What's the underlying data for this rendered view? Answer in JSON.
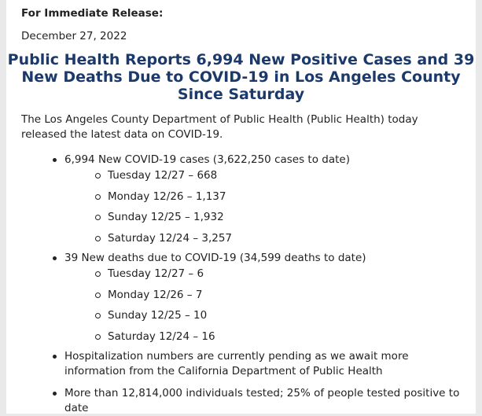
{
  "release_label": "For Immediate Release:",
  "date": "December 27, 2022",
  "headline": "Public Health Reports 6,994 New Positive Cases and 39 New Deaths Due to COVID-19 in Los Angeles County Since Saturday",
  "intro": "The Los Angeles County Department of Public Health (Public Health) today released the latest data on COVID-19.",
  "bullets": [
    {
      "text": "6,994 New COVID-19 cases (3,622,250 cases to date)",
      "sub": [
        "Tuesday 12/27 – 668",
        "Monday 12/26 – 1,137",
        "Sunday 12/25 – 1,932",
        "Saturday 12/24 – 3,257"
      ]
    },
    {
      "text": "39 New deaths due to COVID-19 (34,599 deaths to date)",
      "sub": [
        "Tuesday 12/27 – 6",
        "Monday 12/26 – 7",
        "Sunday 12/25 – 10",
        "Saturday 12/24 – 16"
      ]
    },
    {
      "text": "Hospitalization numbers are currently pending as we await more information from the California Department of Public Health"
    },
    {
      "text": "More than 12,814,000 individuals tested; 25% of people tested positive to date"
    }
  ]
}
